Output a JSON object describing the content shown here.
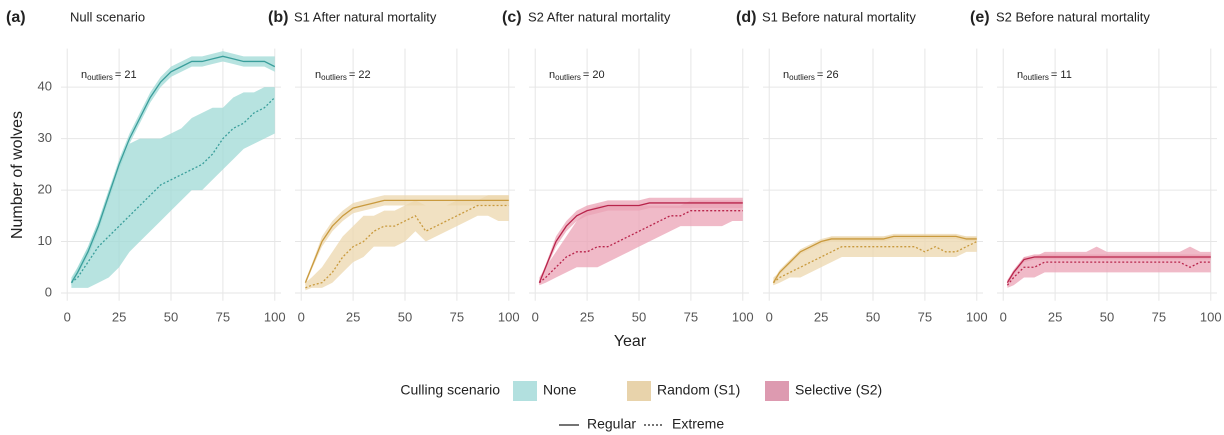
{
  "x_label": "Year",
  "y_label": "Number of wolves",
  "legend": {
    "title": "Culling scenario",
    "fills": [
      {
        "name": "None",
        "color": "#b2e0df"
      },
      {
        "name": "Random (S1)",
        "color": "#e8d3ab"
      },
      {
        "name": "Selective (S2)",
        "color": "#dd9ab0"
      }
    ],
    "linetypes": [
      {
        "name": "Regular",
        "dash": false
      },
      {
        "name": "Extreme",
        "dash": true
      }
    ]
  },
  "chart_data": [
    {
      "type": "line",
      "label": "(a)",
      "title": "Null scenario",
      "annotation": {
        "base": "n",
        "sub": "outliers",
        "text": "= 21"
      },
      "color": "#3a9e9b",
      "band_color": "#9fd9d6",
      "x": [
        2,
        5,
        10,
        15,
        20,
        25,
        30,
        35,
        40,
        45,
        50,
        55,
        60,
        65,
        70,
        75,
        80,
        85,
        90,
        95,
        100
      ],
      "xlim": [
        -3,
        103
      ],
      "xticks": [
        0,
        25,
        50,
        75,
        100
      ],
      "ylim": [
        -1.5,
        47.5
      ],
      "yticks": [
        0,
        10,
        20,
        30,
        40
      ],
      "series": [
        {
          "dash": false,
          "values": [
            2,
            4,
            8,
            13,
            19,
            25,
            30,
            34,
            38,
            41,
            43,
            44,
            45,
            45,
            45.5,
            46,
            45.5,
            45,
            45,
            45,
            44
          ],
          "lower": [
            1.5,
            3.5,
            7,
            12,
            18,
            24,
            29,
            33,
            37,
            40,
            42,
            43,
            44,
            44,
            44.5,
            45,
            44.5,
            44,
            44,
            44,
            43
          ],
          "upper": [
            2.5,
            5,
            9,
            14,
            20,
            26,
            31,
            35,
            39,
            42,
            44,
            45,
            46,
            46,
            46.5,
            47,
            46.5,
            46,
            46,
            46,
            46
          ]
        },
        {
          "dash": true,
          "values": [
            2,
            3,
            6,
            9,
            11,
            13,
            15,
            17,
            19,
            21,
            22,
            23,
            24,
            25,
            27,
            30,
            32,
            33,
            35,
            36,
            38
          ],
          "lower": [
            1,
            1,
            1,
            2,
            3,
            5,
            8,
            10,
            12,
            14,
            16,
            18,
            20,
            20,
            22,
            24,
            26,
            28,
            29,
            30,
            31
          ],
          "upper": [
            3,
            5,
            9,
            14,
            20,
            25,
            29,
            30,
            30,
            30,
            31,
            32,
            34,
            35,
            36,
            36,
            38,
            39,
            39,
            40,
            40
          ]
        }
      ]
    },
    {
      "type": "line",
      "label": "(b)",
      "title": "S1 After natural mortality",
      "annotation": {
        "base": "n",
        "sub": "outliers",
        "text": "= 22"
      },
      "color": "#c99a3e",
      "band_color": "#ecd7ae",
      "x": [
        2,
        5,
        10,
        15,
        20,
        25,
        30,
        35,
        40,
        45,
        50,
        55,
        60,
        65,
        70,
        75,
        80,
        85,
        90,
        95,
        100
      ],
      "xlim": [
        -3,
        103
      ],
      "xticks": [
        0,
        25,
        50,
        75,
        100
      ],
      "ylim": [
        -1.5,
        47.5
      ],
      "yticks": [
        0,
        10,
        20,
        30,
        40
      ],
      "series": [
        {
          "dash": false,
          "values": [
            2,
            5,
            10,
            13,
            15,
            16.5,
            17,
            17.5,
            18,
            18,
            18,
            18,
            18,
            18,
            18,
            18,
            18,
            18,
            18,
            18,
            18
          ],
          "lower": [
            1.5,
            4.5,
            9,
            12,
            14,
            15.5,
            16,
            16.5,
            17,
            17,
            17,
            17,
            17,
            17,
            17,
            17,
            17,
            17,
            17,
            17,
            17
          ],
          "upper": [
            2.5,
            5.5,
            11,
            14,
            16,
            17.5,
            18,
            18.5,
            19,
            19,
            19,
            19,
            19,
            19,
            19,
            19,
            19,
            19,
            19,
            19,
            19
          ]
        },
        {
          "dash": true,
          "values": [
            1,
            1.5,
            2,
            4,
            7,
            9,
            10,
            12,
            13,
            13,
            14,
            15,
            12,
            13,
            14,
            15,
            16,
            17,
            17,
            17,
            17
          ],
          "lower": [
            0.5,
            1,
            1,
            2,
            4,
            6,
            7,
            9,
            9,
            9,
            10,
            12,
            10,
            11,
            12,
            13,
            14,
            15,
            15,
            14,
            14
          ],
          "upper": [
            2,
            3,
            5,
            8,
            11,
            13,
            15,
            15,
            16,
            16,
            17,
            18,
            17,
            17,
            17,
            18,
            18,
            18,
            19,
            19,
            19
          ]
        }
      ]
    },
    {
      "type": "line",
      "label": "(c)",
      "title": "S2 After natural mortality",
      "annotation": {
        "base": "n",
        "sub": "outliers",
        "text": "= 20"
      },
      "color": "#b8244b",
      "band_color": "#eba3b5",
      "x": [
        2,
        5,
        10,
        15,
        20,
        25,
        30,
        35,
        40,
        45,
        50,
        55,
        60,
        65,
        70,
        75,
        80,
        85,
        90,
        95,
        100
      ],
      "xlim": [
        -3,
        103
      ],
      "xticks": [
        0,
        25,
        50,
        75,
        100
      ],
      "ylim": [
        -1.5,
        47.5
      ],
      "yticks": [
        0,
        10,
        20,
        30,
        40
      ],
      "series": [
        {
          "dash": false,
          "values": [
            2,
            5,
            10,
            13,
            15,
            16,
            16.5,
            17,
            17,
            17,
            17,
            17.5,
            17.5,
            17.5,
            17.5,
            17.5,
            17.5,
            17.5,
            17.5,
            17.5,
            17.5
          ],
          "lower": [
            1.5,
            4.5,
            9,
            12,
            14,
            15,
            15.5,
            16,
            16,
            16,
            16,
            16.5,
            16.5,
            16.5,
            16.5,
            16.5,
            16.5,
            16.5,
            16.5,
            16.5,
            16.5
          ],
          "upper": [
            2.5,
            5.5,
            11,
            14,
            16,
            17,
            17.5,
            18,
            18,
            18,
            18,
            18.5,
            18.5,
            18.5,
            18.5,
            18.5,
            18.5,
            18.5,
            18.5,
            18.5,
            18.5
          ]
        },
        {
          "dash": true,
          "values": [
            2,
            3,
            5,
            7,
            8,
            8,
            9,
            9,
            10,
            11,
            12,
            13,
            14,
            15,
            15,
            16,
            16,
            16,
            16,
            16,
            16
          ],
          "lower": [
            1.5,
            2,
            3,
            4,
            5,
            5,
            5,
            6,
            7,
            8,
            9,
            10,
            11,
            12,
            13,
            13,
            13,
            13,
            13,
            14,
            14
          ],
          "upper": [
            3,
            5,
            8,
            11,
            14,
            16,
            17,
            17,
            17,
            17,
            17,
            17,
            17,
            17,
            17,
            18,
            18,
            18,
            18,
            18,
            18
          ]
        }
      ]
    },
    {
      "type": "line",
      "label": "(d)",
      "title": "S1 Before natural mortality",
      "annotation": {
        "base": "n",
        "sub": "outliers",
        "text": "= 26"
      },
      "color": "#c99a3e",
      "band_color": "#ecd7ae",
      "x": [
        2,
        5,
        10,
        15,
        20,
        25,
        30,
        35,
        40,
        45,
        50,
        55,
        60,
        65,
        70,
        75,
        80,
        85,
        90,
        95,
        100
      ],
      "xlim": [
        -3,
        103
      ],
      "xticks": [
        0,
        25,
        50,
        75,
        100
      ],
      "ylim": [
        -1.5,
        47.5
      ],
      "yticks": [
        0,
        10,
        20,
        30,
        40
      ],
      "series": [
        {
          "dash": false,
          "values": [
            2,
            4,
            6,
            8,
            9,
            10,
            10.5,
            10.5,
            10.5,
            10.5,
            10.5,
            10.5,
            11,
            11,
            11,
            11,
            11,
            11,
            11,
            10.5,
            10.5
          ],
          "lower": [
            1.5,
            3.5,
            5.5,
            7.5,
            8.5,
            9.5,
            10,
            10,
            10,
            10,
            10,
            10,
            10.5,
            10.5,
            10.5,
            10.5,
            10.5,
            10.5,
            10.5,
            10,
            10
          ],
          "upper": [
            2.5,
            4.5,
            6.5,
            8.5,
            9.5,
            10.5,
            11,
            11,
            11,
            11,
            11,
            11,
            11.5,
            11.5,
            11.5,
            11.5,
            11.5,
            11.5,
            11.5,
            11,
            11
          ]
        },
        {
          "dash": true,
          "values": [
            2,
            3,
            4,
            5,
            6,
            7,
            8,
            9,
            9,
            9,
            9,
            9,
            9,
            9,
            9,
            8,
            9,
            8,
            8,
            9,
            10
          ],
          "lower": [
            1.5,
            2,
            3,
            3,
            4,
            5,
            6,
            7,
            7,
            7,
            7,
            7,
            7,
            7,
            7,
            7,
            7,
            7,
            7,
            8,
            8
          ],
          "upper": [
            3,
            4,
            6,
            8,
            9,
            10,
            11,
            11,
            11,
            11,
            11,
            11,
            11,
            11,
            11,
            11,
            11,
            11,
            11,
            11,
            11
          ]
        }
      ]
    },
    {
      "type": "line",
      "label": "(e)",
      "title": "S2 Before natural mortality",
      "annotation": {
        "base": "n",
        "sub": "outliers",
        "text": "= 11"
      },
      "color": "#b8244b",
      "band_color": "#eba3b5",
      "x": [
        2,
        5,
        10,
        15,
        20,
        25,
        30,
        35,
        40,
        45,
        50,
        55,
        60,
        65,
        70,
        75,
        80,
        85,
        90,
        95,
        100
      ],
      "xlim": [
        -3,
        103
      ],
      "xticks": [
        0,
        25,
        50,
        75,
        100
      ],
      "ylim": [
        -1.5,
        47.5
      ],
      "yticks": [
        0,
        10,
        20,
        30,
        40
      ],
      "series": [
        {
          "dash": false,
          "values": [
            2,
            4,
            6.5,
            7,
            7,
            7,
            7,
            7,
            7,
            7,
            7,
            7,
            7,
            7,
            7,
            7,
            7,
            7,
            7,
            7,
            7
          ],
          "lower": [
            1.5,
            3.5,
            6,
            6.5,
            6.5,
            6.5,
            6.5,
            6.5,
            6.5,
            6.5,
            6.5,
            6.5,
            6.5,
            6.5,
            6.5,
            6.5,
            6.5,
            6.5,
            6.5,
            6.5,
            6.5
          ],
          "upper": [
            2.5,
            4.5,
            7,
            7.5,
            7.5,
            7.5,
            7.5,
            7.5,
            7.5,
            7.5,
            7.5,
            7.5,
            7.5,
            7.5,
            7.5,
            7.5,
            7.5,
            7.5,
            7.5,
            7.5,
            7.5
          ]
        },
        {
          "dash": true,
          "values": [
            1.5,
            3,
            5,
            5,
            6,
            6,
            6,
            6,
            6,
            6,
            6,
            6,
            6,
            6,
            6,
            6,
            6,
            6,
            5,
            6,
            6
          ],
          "lower": [
            1,
            1.5,
            3,
            3,
            4,
            4,
            4,
            4,
            4,
            4,
            4,
            4,
            4,
            4,
            4,
            4,
            4,
            4,
            4,
            4,
            4
          ],
          "upper": [
            2.5,
            4,
            7,
            7,
            8,
            8,
            8,
            8,
            8,
            9,
            8,
            8,
            8,
            8,
            8,
            8,
            8,
            8,
            9,
            8,
            8
          ]
        }
      ]
    }
  ]
}
